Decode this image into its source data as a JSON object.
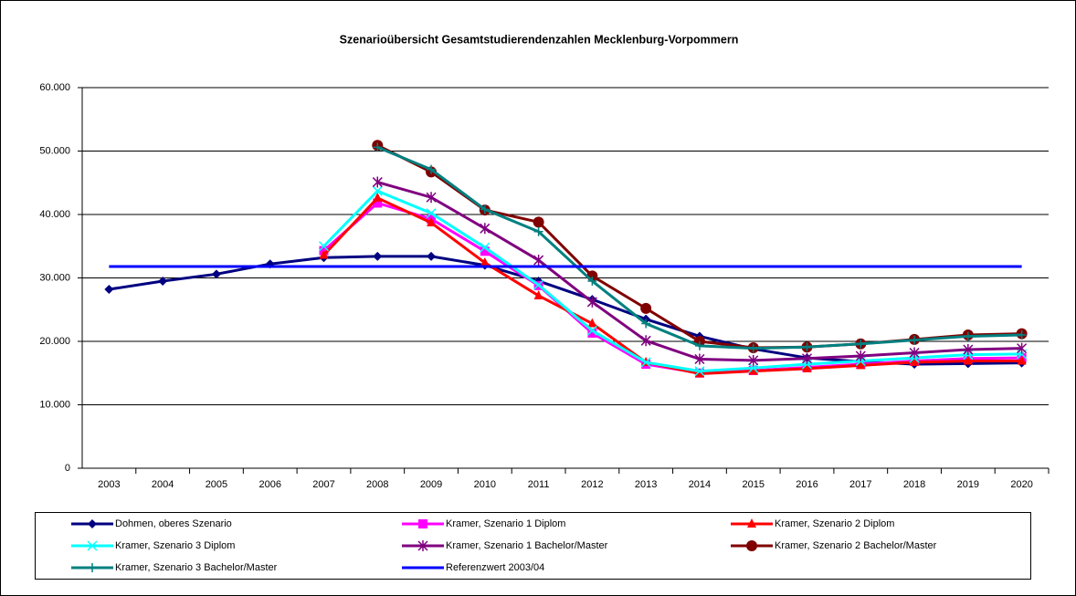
{
  "chart_data": {
    "type": "line",
    "title": "Szenarioübersicht Gesamtstudierendenzahlen Mecklenburg-Vorpommern",
    "categories": [
      "2003",
      "2004",
      "2005",
      "2006",
      "2007",
      "2008",
      "2009",
      "2010",
      "2011",
      "2012",
      "2013",
      "2014",
      "2015",
      "2016",
      "2017",
      "2018",
      "2019",
      "2020"
    ],
    "ylim": [
      0,
      60000
    ],
    "yticks": [
      0,
      {
        "value": 10000,
        "label": "10.000"
      },
      {
        "value": 20000,
        "label": "20.000"
      },
      {
        "value": 30000,
        "label": "30.000"
      },
      {
        "value": 40000,
        "label": "40.000"
      },
      {
        "value": 50000,
        "label": "50.000"
      },
      {
        "value": 60000,
        "label": "60.000"
      }
    ],
    "grid": true,
    "legend": "bottom",
    "series": [
      {
        "name": "Dohmen, oberes Szenario",
        "color": "#000080",
        "marker": "diamond",
        "values": [
          28200,
          29500,
          30600,
          32200,
          33200,
          33400,
          33400,
          32000,
          29500,
          26600,
          23500,
          20800,
          18800,
          17400,
          16800,
          16400,
          16500,
          16600
        ]
      },
      {
        "name": "Kramer, Szenario 1 Diplom",
        "color": "#ff00ff",
        "marker": "square",
        "values": [
          null,
          null,
          null,
          null,
          34300,
          41800,
          39300,
          34200,
          28800,
          21300,
          16400,
          15000,
          15400,
          15900,
          16400,
          16900,
          17300,
          17400
        ]
      },
      {
        "name": "Kramer, Szenario 2 Diplom",
        "color": "#ff0000",
        "marker": "triangle",
        "values": [
          null,
          null,
          null,
          null,
          33600,
          42600,
          38700,
          32400,
          27200,
          22800,
          16700,
          14900,
          15300,
          15700,
          16200,
          16700,
          16900,
          16900
        ]
      },
      {
        "name": "Kramer, Szenario 3 Diplom",
        "color": "#00ffff",
        "marker": "x",
        "values": [
          null,
          null,
          null,
          null,
          35000,
          43700,
          40200,
          34800,
          28900,
          21700,
          16700,
          15300,
          15800,
          16400,
          16900,
          17400,
          17900,
          18000
        ]
      },
      {
        "name": "Kramer, Szenario 1 Bachelor/Master",
        "color": "#800080",
        "marker": "star",
        "values": [
          null,
          null,
          null,
          null,
          null,
          45100,
          42700,
          37800,
          32800,
          26200,
          20100,
          17200,
          17000,
          17300,
          17700,
          18200,
          18700,
          18900
        ]
      },
      {
        "name": "Kramer, Szenario 2 Bachelor/Master",
        "color": "#800000",
        "marker": "circle",
        "values": [
          null,
          null,
          null,
          null,
          null,
          50900,
          46700,
          40700,
          38800,
          30300,
          25200,
          20000,
          19000,
          19100,
          19600,
          20300,
          21000,
          21200
        ]
      },
      {
        "name": "Kramer, Szenario 3 Bachelor/Master",
        "color": "#008080",
        "marker": "plus",
        "values": [
          null,
          null,
          null,
          null,
          null,
          50600,
          47100,
          40800,
          37300,
          29500,
          22800,
          19300,
          18900,
          19100,
          19600,
          20200,
          20800,
          21000
        ]
      },
      {
        "name": "Referenzwert 2003/04",
        "color": "#0000ff",
        "marker": "none",
        "values": [
          31800,
          31800,
          31800,
          31800,
          31800,
          31800,
          31800,
          31800,
          31800,
          31800,
          31800,
          31800,
          31800,
          31800,
          31800,
          31800,
          31800,
          31800
        ]
      }
    ]
  }
}
